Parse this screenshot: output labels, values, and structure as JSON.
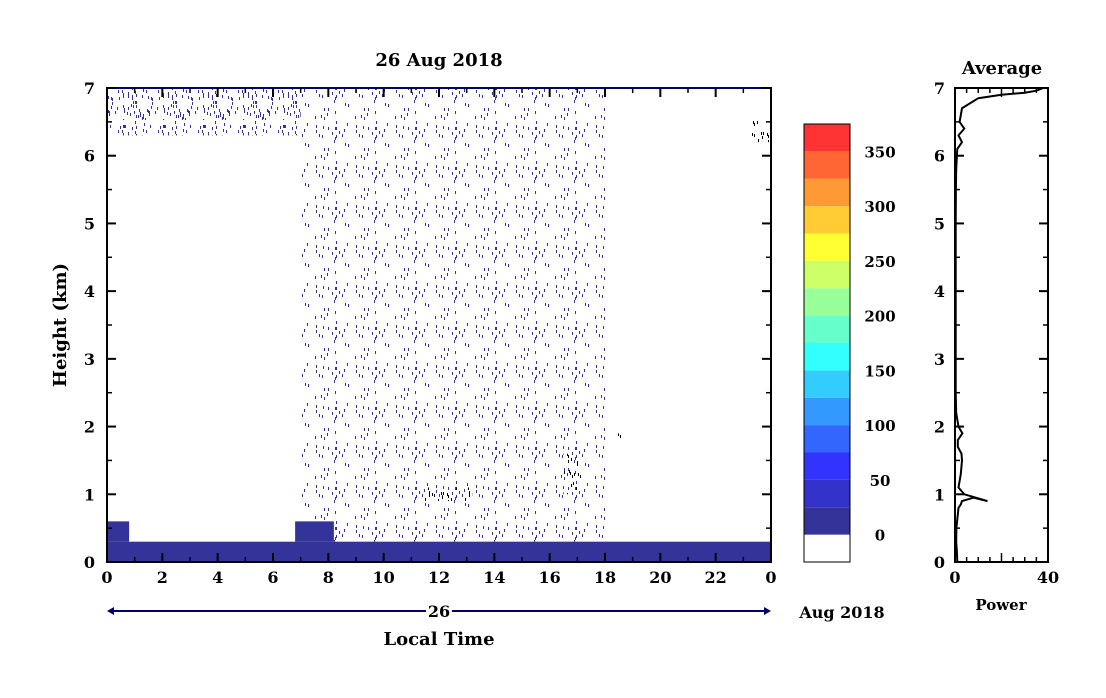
{
  "chart_data": [
    {
      "type": "heatmap",
      "title": "26 Aug 2018",
      "xlabel": "Local Time",
      "ylabel": "Height (km)",
      "xlim": [
        0,
        24
      ],
      "ylim": [
        0,
        7
      ],
      "x_ticks": [
        "0",
        "2",
        "4",
        "6",
        "8",
        "10",
        "12",
        "14",
        "16",
        "18",
        "20",
        "22",
        "0"
      ],
      "y_ticks": [
        "0",
        "1",
        "2",
        "3",
        "4",
        "5",
        "6",
        "7"
      ],
      "date_axis": {
        "day_label": "26",
        "month_label": "Aug 2018"
      },
      "colorbar": {
        "levels": [
          0,
          25,
          50,
          75,
          100,
          125,
          150,
          175,
          200,
          225,
          250,
          275,
          300,
          325,
          350,
          375
        ],
        "tick_labels": [
          "0",
          "50",
          "100",
          "150",
          "200",
          "250",
          "300",
          "350"
        ],
        "colors": [
          "#ffffff",
          "#333399",
          "#3333cc",
          "#3333ff",
          "#3366ff",
          "#3399ff",
          "#33ccff",
          "#33ffff",
          "#66ffcc",
          "#99ff99",
          "#ccff66",
          "#ffff33",
          "#ffcc33",
          "#ff9933",
          "#ff6633",
          "#ff3333"
        ]
      },
      "regions": [
        {
          "name": "surface layer",
          "t": [
            0,
            24
          ],
          "h": [
            0,
            0.3
          ],
          "level": 1
        },
        {
          "name": "surface bump morning",
          "t": [
            0,
            0.8
          ],
          "h": [
            0.3,
            0.6
          ],
          "level": 1
        },
        {
          "name": "surface bump 7h",
          "t": [
            6.8,
            8.2
          ],
          "h": [
            0.3,
            0.6
          ],
          "level": 1
        },
        {
          "name": "scattered echoes",
          "t": [
            7,
            18
          ],
          "h": [
            0,
            7
          ],
          "level": 1
        },
        {
          "name": "top layer",
          "t": [
            0,
            7
          ],
          "h": [
            6.3,
            7
          ],
          "level": 1
        },
        {
          "name": "strong echo 11-13h",
          "t": [
            11.3,
            13.2
          ],
          "h": [
            0.9,
            1.1
          ],
          "level": 0
        },
        {
          "name": "strong echo 17h",
          "t": [
            16.5,
            17.2
          ],
          "h": [
            1.0,
            1.6
          ],
          "level": 0
        },
        {
          "name": "strong echo 18.5h",
          "t": [
            18.4,
            18.6
          ],
          "h": [
            1.7,
            1.9
          ],
          "level": 0
        },
        {
          "name": "strong echo 23.5h",
          "t": [
            23.3,
            24
          ],
          "h": [
            6.2,
            6.6
          ],
          "level": 0
        }
      ]
    },
    {
      "type": "line",
      "title": "Average",
      "xlabel": "Power",
      "ylabel": "",
      "xlim": [
        0,
        40
      ],
      "ylim": [
        0,
        7
      ],
      "x_ticks": [
        "0",
        "40"
      ],
      "y_ticks": [
        "0",
        "1",
        "2",
        "3",
        "4",
        "5",
        "6",
        "7"
      ],
      "series": [
        {
          "x": [
            1,
            0.8,
            0.5,
            0.6,
            1.5,
            2.5,
            3,
            8,
            14,
            4,
            1.5,
            2.5,
            3,
            2.8,
            1.2,
            1.2,
            2.2,
            3.2,
            1.5,
            0.5,
            0.3,
            0.3,
            0.3,
            0.3,
            0.4,
            0.5,
            1,
            3,
            1.5,
            4,
            2,
            3,
            10,
            20,
            30,
            35,
            38
          ],
          "y": [
            0,
            0.15,
            0.3,
            0.5,
            0.8,
            0.85,
            0.9,
            0.95,
            0.9,
            1.0,
            1.1,
            1.3,
            1.5,
            1.6,
            1.7,
            1.8,
            1.85,
            1.9,
            2.0,
            2.2,
            2.5,
            3.0,
            4.0,
            5.0,
            5.5,
            5.8,
            6.1,
            6.2,
            6.3,
            6.4,
            6.5,
            6.7,
            6.85,
            6.9,
            6.93,
            6.96,
            7.0
          ]
        }
      ]
    }
  ]
}
